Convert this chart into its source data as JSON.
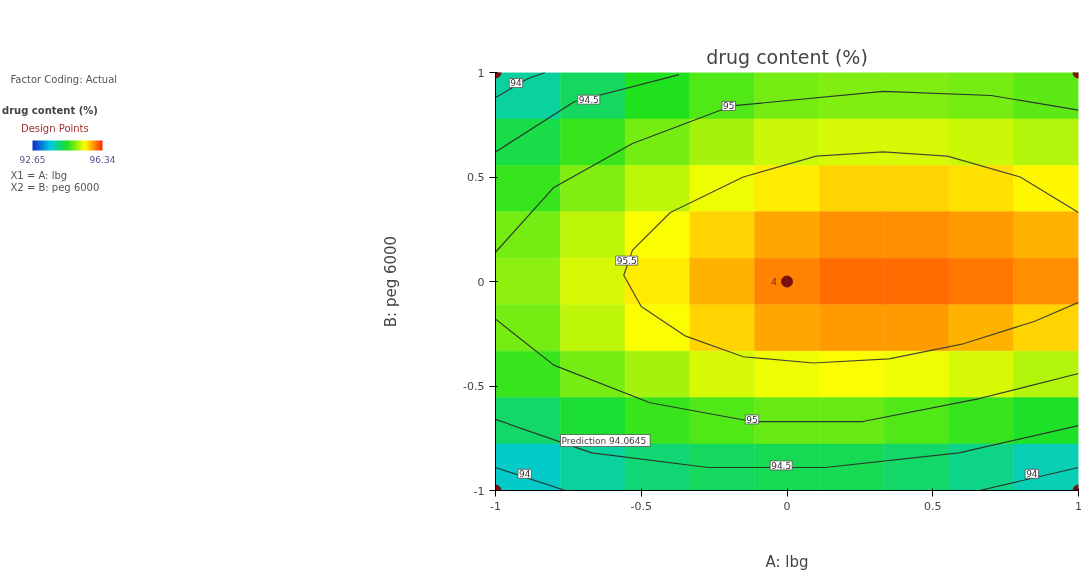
{
  "chart_data": {
    "type": "heatmap",
    "title": "drug content (%)",
    "xlabel": "A: lbg",
    "ylabel": "B: peg 6000",
    "legend_title": "drug content (%)",
    "xlim": [
      -1,
      1
    ],
    "ylim": [
      -1,
      1
    ],
    "xticks": [
      -1,
      -0.5,
      0,
      0.5,
      1
    ],
    "yticks": [
      -1,
      -0.5,
      0,
      0.5,
      1
    ],
    "legend": "left",
    "clim": [
      92.65,
      96.34
    ],
    "cticks": [
      92.65,
      96.34
    ],
    "cells": [
      [
        93.9,
        94.2,
        94.5,
        94.7,
        94.85,
        94.9,
        94.9,
        94.85,
        94.75
      ],
      [
        94.3,
        94.6,
        94.85,
        95.05,
        95.2,
        95.25,
        95.25,
        95.2,
        95.1
      ],
      [
        94.6,
        94.9,
        95.15,
        95.35,
        95.5,
        95.6,
        95.6,
        95.55,
        95.45
      ],
      [
        94.85,
        95.15,
        95.4,
        95.6,
        95.8,
        95.9,
        95.9,
        95.85,
        95.75
      ],
      [
        94.95,
        95.25,
        95.5,
        95.75,
        95.95,
        96.05,
        96.05,
        96.0,
        95.9
      ],
      [
        94.85,
        95.15,
        95.4,
        95.6,
        95.8,
        95.85,
        95.85,
        95.75,
        95.6
      ],
      [
        94.6,
        94.85,
        95.05,
        95.25,
        95.35,
        95.4,
        95.35,
        95.25,
        95.1
      ],
      [
        94.15,
        94.4,
        94.6,
        94.7,
        94.8,
        94.8,
        94.7,
        94.6,
        94.45
      ],
      [
        93.7,
        93.9,
        94.1,
        94.2,
        94.25,
        94.25,
        94.15,
        94.0,
        93.8
      ]
    ],
    "series": [
      {
        "type": "line",
        "color": "#4a4a2a",
        "x": [
          1,
          0.8,
          0.55,
          0.33,
          0.1,
          -0.15,
          -0.4,
          -0.53,
          -0.56,
          -0.5,
          -0.35,
          -0.15,
          0.09,
          0.35,
          0.6,
          0.85,
          1
        ],
        "values": [
          0.33,
          0.5,
          0.6,
          0.62,
          0.6,
          0.5,
          0.33,
          0.15,
          0.03,
          -0.12,
          -0.26,
          -0.36,
          -0.39,
          -0.37,
          -0.3,
          -0.19,
          -0.1
        ]
      },
      {
        "type": "line",
        "color": "#2a3a2a",
        "x": [
          -1,
          -0.8,
          -0.53,
          -0.19,
          0.33,
          0.7,
          1
        ],
        "values": [
          0.14,
          0.45,
          0.66,
          0.84,
          0.91,
          0.89,
          0.82
        ]
      },
      {
        "type": "line",
        "color": "#2a3a2a",
        "x": [
          -1,
          -0.8,
          -0.47,
          -0.12,
          0.26,
          0.66,
          1
        ],
        "values": [
          -0.18,
          -0.4,
          -0.58,
          -0.67,
          -0.67,
          -0.56,
          -0.44
        ]
      },
      {
        "type": "line",
        "color": "#2a3a2a",
        "x": [
          -1,
          -0.73,
          -0.37
        ],
        "values": [
          0.62,
          0.86,
          0.99
        ]
      },
      {
        "type": "line",
        "color": "#2a3a2a",
        "x": [
          -1,
          -0.67,
          -0.27,
          0.13,
          0.59,
          1
        ],
        "values": [
          -0.66,
          -0.82,
          -0.89,
          -0.89,
          -0.82,
          -0.69
        ]
      },
      {
        "type": "line",
        "color": "#2a3a2a",
        "x": [
          -1,
          -0.89,
          -0.83
        ],
        "values": [
          0.88,
          0.97,
          1
        ]
      },
      {
        "type": "line",
        "color": "#2a3a2a",
        "x": [
          -1,
          -0.76
        ],
        "values": [
          -0.89,
          -1
        ]
      },
      {
        "type": "line",
        "color": "#2a3a2a",
        "x": [
          0.66,
          1
        ],
        "values": [
          -1,
          -0.89
        ]
      },
      {
        "type": "scatter",
        "name": "Design Points",
        "color": "#7a1010",
        "marker": "circle",
        "x": [
          -1,
          1,
          0,
          -1,
          1
        ],
        "values": [
          1,
          1,
          0,
          -1,
          -1
        ]
      }
    ],
    "annotations": [
      {
        "text": "94",
        "x": -0.93,
        "y": 0.95
      },
      {
        "text": "94.5",
        "x": -0.68,
        "y": 0.87
      },
      {
        "text": "95",
        "x": -0.2,
        "y": 0.84
      },
      {
        "text": "95.5",
        "x": -0.55,
        "y": 0.1
      },
      {
        "text": "95",
        "x": -0.12,
        "y": -0.66
      },
      {
        "text": "94.5",
        "x": -0.02,
        "y": -0.88
      },
      {
        "text": "94",
        "x": -0.9,
        "y": -0.92
      },
      {
        "text": "94",
        "x": 0.84,
        "y": -0.92
      },
      {
        "text": "4",
        "x": 0,
        "y": 0
      },
      "Factor Coding: Actual",
      "X1 = A: lbg",
      "X2 = B: peg 6000",
      "Prediction  94.0645"
    ]
  }
}
